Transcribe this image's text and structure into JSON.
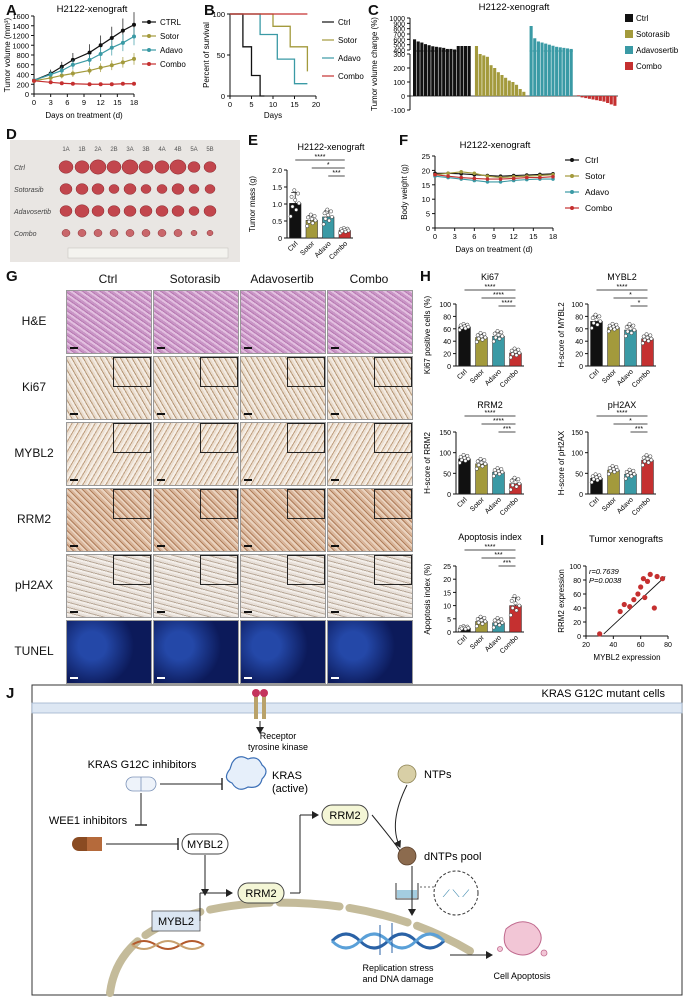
{
  "panel_letters": [
    "A",
    "B",
    "C",
    "D",
    "E",
    "F",
    "G",
    "H",
    "I",
    "J"
  ],
  "colors": {
    "ctrl": "#111111",
    "sotor": "#a39a3c",
    "adavo": "#3a9aa5",
    "combo": "#c53030"
  },
  "chart_data": [
    {
      "id": "A",
      "type": "line",
      "title": "H2122-xenograft",
      "xlabel": "Days on treatment (d)",
      "ylabel": "Tumor volume (mm³)",
      "xlim": [
        0,
        18
      ],
      "ylim": [
        0,
        1600
      ],
      "xticks": [
        "0",
        "3",
        "6",
        "9",
        "12",
        "15",
        "18"
      ],
      "yticks": [
        "0",
        "200",
        "400",
        "600",
        "800",
        "1000",
        "1200",
        "1400",
        "1600"
      ],
      "x": [
        0,
        3,
        5,
        7,
        10,
        12,
        14,
        16,
        18
      ],
      "legend_position": "top-right",
      "series": [
        {
          "name": "CTRL",
          "color_key": "ctrl",
          "values": [
            280,
            420,
            560,
            700,
            850,
            1000,
            1150,
            1300,
            1420
          ],
          "err": [
            50,
            80,
            100,
            140,
            170,
            200,
            230,
            250,
            260
          ]
        },
        {
          "name": "Sotor",
          "color_key": "sotor",
          "values": [
            270,
            330,
            380,
            420,
            480,
            540,
            590,
            650,
            720
          ],
          "err": [
            40,
            50,
            60,
            70,
            80,
            90,
            100,
            110,
            120
          ]
        },
        {
          "name": "Adavo",
          "color_key": "adavo",
          "values": [
            280,
            400,
            480,
            600,
            700,
            820,
            950,
            1050,
            1180
          ],
          "err": [
            40,
            60,
            80,
            100,
            120,
            140,
            160,
            170,
            180
          ]
        },
        {
          "name": "Combo",
          "color_key": "combo",
          "values": [
            270,
            240,
            220,
            210,
            200,
            200,
            200,
            210,
            210
          ],
          "err": [
            30,
            30,
            30,
            30,
            30,
            30,
            30,
            30,
            30
          ]
        }
      ]
    },
    {
      "id": "B",
      "type": "line",
      "title": "",
      "xlabel": "Days",
      "ylabel": "Percent of survival",
      "xlim": [
        0,
        20
      ],
      "ylim": [
        0,
        100
      ],
      "xticks": [
        "0",
        "5",
        "10",
        "15",
        "20"
      ],
      "yticks": [
        "0",
        "50",
        "100"
      ],
      "legend_position": "right",
      "series": [
        {
          "name": "Ctrl",
          "color_key": "ctrl",
          "steps": [
            [
              0,
              100
            ],
            [
              3,
              100
            ],
            [
              3,
              60
            ],
            [
              5,
              60
            ],
            [
              5,
              25
            ],
            [
              7,
              25
            ],
            [
              7,
              0
            ],
            [
              8,
              0
            ]
          ]
        },
        {
          "name": "Sotor",
          "color_key": "sotor",
          "steps": [
            [
              0,
              100
            ],
            [
              10,
              100
            ],
            [
              10,
              85
            ],
            [
              14,
              85
            ],
            [
              14,
              60
            ],
            [
              18,
              60
            ],
            [
              18,
              30
            ]
          ]
        },
        {
          "name": "Adavo",
          "color_key": "adavo",
          "steps": [
            [
              0,
              100
            ],
            [
              7,
              100
            ],
            [
              7,
              75
            ],
            [
              11,
              75
            ],
            [
              11,
              45
            ],
            [
              15,
              45
            ],
            [
              15,
              15
            ],
            [
              18,
              15
            ]
          ]
        },
        {
          "name": "Combo",
          "color_key": "combo",
          "steps": [
            [
              0,
              100
            ],
            [
              18,
              100
            ]
          ]
        }
      ]
    },
    {
      "id": "C",
      "type": "bar",
      "title": "H2122-xenograft",
      "ylabel": "Tumor volume change (%)",
      "yticks_top": [
        "400",
        "500",
        "600",
        "700",
        "800",
        "900",
        "1000"
      ],
      "yticks_bottom": [
        "-100",
        "0",
        "100",
        "200",
        "300"
      ],
      "axis_break": [
        300,
        400
      ],
      "legend": [
        "Ctrl",
        "Sotorasib",
        "Adavosertib",
        "Combo"
      ],
      "series": [
        {
          "name": "Ctrl",
          "color_key": "ctrl",
          "values": [
            600,
            560,
            540,
            510,
            490,
            470,
            460,
            450,
            440,
            420,
            420,
            410,
            400,
            390,
            380,
            370
          ]
        },
        {
          "name": "Sotorasib",
          "color_key": "sotor",
          "values": [
            380,
            300,
            290,
            280,
            220,
            200,
            170,
            150,
            130,
            110,
            100,
            80,
            50,
            30
          ]
        },
        {
          "name": "Adavosertib",
          "color_key": "adavo",
          "values": [
            850,
            620,
            560,
            540,
            520,
            500,
            480,
            460,
            450,
            440,
            430,
            420
          ]
        },
        {
          "name": "Combo",
          "color_key": "combo",
          "values": [
            5,
            -10,
            -15,
            -20,
            -25,
            -30,
            -35,
            -40,
            -50,
            -60,
            -70
          ]
        }
      ]
    },
    {
      "id": "E",
      "type": "bar",
      "title": "H2122-xenograft",
      "ylabel": "Tumor mass (g)",
      "ylim": [
        0,
        2.0
      ],
      "yticks": [
        "0",
        "0.5",
        "1.0",
        "1.5",
        "2.0"
      ],
      "categories": [
        "Ctrl",
        "Sotor",
        "Adavo",
        "Combo"
      ],
      "values": [
        1.02,
        0.52,
        0.62,
        0.22
      ],
      "err": [
        0.32,
        0.14,
        0.18,
        0.06
      ],
      "sig": [
        "****",
        "*",
        "***"
      ]
    },
    {
      "id": "F",
      "type": "line",
      "title": "H2122-xenograft",
      "xlabel": "Days on treatment (d)",
      "ylabel": "Body weight (g)",
      "xlim": [
        0,
        18
      ],
      "ylim": [
        0,
        25
      ],
      "xticks": [
        "0",
        "3",
        "6",
        "9",
        "12",
        "15",
        "18"
      ],
      "yticks": [
        "0",
        "5",
        "10",
        "15",
        "20",
        "25"
      ],
      "x": [
        0,
        2,
        4,
        6,
        8,
        10,
        12,
        14,
        16,
        18
      ],
      "legend_position": "right",
      "series": [
        {
          "name": "Ctrl",
          "color_key": "ctrl",
          "values": [
            19,
            19,
            18.8,
            18.5,
            18.2,
            18,
            18.2,
            18.4,
            18.6,
            18.8
          ]
        },
        {
          "name": "Sotor",
          "color_key": "sotor",
          "values": [
            18.5,
            19,
            19.5,
            19,
            18,
            17.5,
            17.8,
            18,
            18.2,
            18.5
          ]
        },
        {
          "name": "Adavo",
          "color_key": "adavo",
          "values": [
            18,
            17.5,
            17,
            16.5,
            16,
            16,
            16.5,
            16.8,
            17,
            17
          ]
        },
        {
          "name": "Combo",
          "color_key": "combo",
          "values": [
            18.5,
            18,
            17.5,
            17.2,
            17,
            17,
            17.2,
            17.5,
            17.5,
            17.8
          ]
        }
      ]
    },
    {
      "id": "H1",
      "type": "bar",
      "title": "Ki67",
      "ylabel": "Ki67 positive cells (%)",
      "ylim": [
        0,
        100
      ],
      "yticks": [
        "0",
        "20",
        "40",
        "60",
        "80",
        "100"
      ],
      "categories": [
        "Ctrl",
        "Sotor",
        "Adavo",
        "Combo"
      ],
      "values": [
        63,
        46,
        48,
        21
      ],
      "err": [
        4,
        6,
        7,
        6
      ],
      "sig": [
        "****",
        "****",
        "****"
      ]
    },
    {
      "id": "H2",
      "type": "bar",
      "title": "MYBL2",
      "ylabel": "H-score of MYBL2",
      "ylim": [
        0,
        100
      ],
      "yticks": [
        "0",
        "20",
        "40",
        "60",
        "80",
        "100"
      ],
      "categories": [
        "Ctrl",
        "Sotor",
        "Adavo",
        "Combo"
      ],
      "values": [
        72,
        62,
        58,
        44
      ],
      "err": [
        9,
        5,
        8,
        6
      ],
      "sig": [
        "****",
        "*",
        "*"
      ]
    },
    {
      "id": "H3",
      "type": "bar",
      "title": "RRM2",
      "ylabel": "H-score of RRM2",
      "ylim": [
        0,
        150
      ],
      "yticks": [
        "0",
        "50",
        "100",
        "150"
      ],
      "categories": [
        "Ctrl",
        "Sotor",
        "Adavo",
        "Combo"
      ],
      "values": [
        85,
        73,
        53,
        25
      ],
      "err": [
        8,
        10,
        8,
        12
      ],
      "sig": [
        "****",
        "****",
        "***"
      ]
    },
    {
      "id": "H4",
      "type": "bar",
      "title": "pH2AX",
      "ylabel": "H-score of pH2AX",
      "ylim": [
        0,
        150
      ],
      "yticks": [
        "0",
        "50",
        "100",
        "150"
      ],
      "categories": [
        "Ctrl",
        "Sotor",
        "Adavo",
        "Combo"
      ],
      "values": [
        38,
        58,
        48,
        82
      ],
      "err": [
        8,
        8,
        9,
        10
      ],
      "sig": [
        "****",
        "*",
        "***"
      ]
    },
    {
      "id": "H5",
      "type": "bar",
      "title": "Apoptosis index",
      "ylabel": "Apoptosis index (%)",
      "ylim": [
        0,
        25
      ],
      "yticks": [
        "0",
        "5",
        "10",
        "15",
        "20",
        "25"
      ],
      "categories": [
        "Ctrl",
        "Sotor",
        "Adavo",
        "Combo"
      ],
      "values": [
        1.5,
        4,
        3.5,
        10
      ],
      "err": [
        0.6,
        1.5,
        1.5,
        3
      ],
      "sig": [
        "****",
        "***",
        "***"
      ]
    },
    {
      "id": "I",
      "type": "scatter",
      "title": "Tumor xenografts",
      "xlabel": "MYBL2 expression",
      "ylabel": "RRM2 expression",
      "xlim": [
        20,
        80
      ],
      "ylim": [
        0,
        100
      ],
      "xticks": [
        "20",
        "40",
        "60",
        "80"
      ],
      "yticks": [
        "0",
        "20",
        "40",
        "60",
        "80",
        "100"
      ],
      "annotations": [
        "r=0.7639",
        "P=0.0038"
      ],
      "points": [
        [
          30,
          3
        ],
        [
          45,
          35
        ],
        [
          48,
          45
        ],
        [
          52,
          42
        ],
        [
          55,
          52
        ],
        [
          58,
          60
        ],
        [
          60,
          70
        ],
        [
          62,
          82
        ],
        [
          63,
          55
        ],
        [
          65,
          78
        ],
        [
          67,
          88
        ],
        [
          70,
          40
        ],
        [
          72,
          85
        ],
        [
          76,
          82
        ]
      ],
      "fit": [
        [
          33,
          3
        ],
        [
          78,
          85
        ]
      ]
    }
  ],
  "panel_d": {
    "rows": [
      "Ctrl",
      "Sotorasib",
      "Adavosertib",
      "Combo"
    ],
    "cols": [
      "1A",
      "1B",
      "2A",
      "2B",
      "3A",
      "3B",
      "4A",
      "4B",
      "5A",
      "5B"
    ]
  },
  "panel_g": {
    "cols": [
      "Ctrl",
      "Sotorasib",
      "Adavosertib",
      "Combo"
    ],
    "rows": [
      "H&E",
      "Ki67",
      "MYBL2",
      "RRM2",
      "pH2AX",
      "TUNEL"
    ]
  },
  "panel_j": {
    "cell_label": "KRAS G12C mutant cells",
    "rtk": "Receptor\ntyrosine kinase",
    "kras_inh": "KRAS G12C inhibitors",
    "kras": "KRAS\n(active)",
    "wee1": "WEE1 inhibitors",
    "mybl2": "MYBL2",
    "rrm2": "RRM2",
    "ntps": "NTPs",
    "dntps": "dNTPs pool",
    "rep": "Replication stress\nand DNA damage",
    "apop": "Cell Apoptosis"
  }
}
